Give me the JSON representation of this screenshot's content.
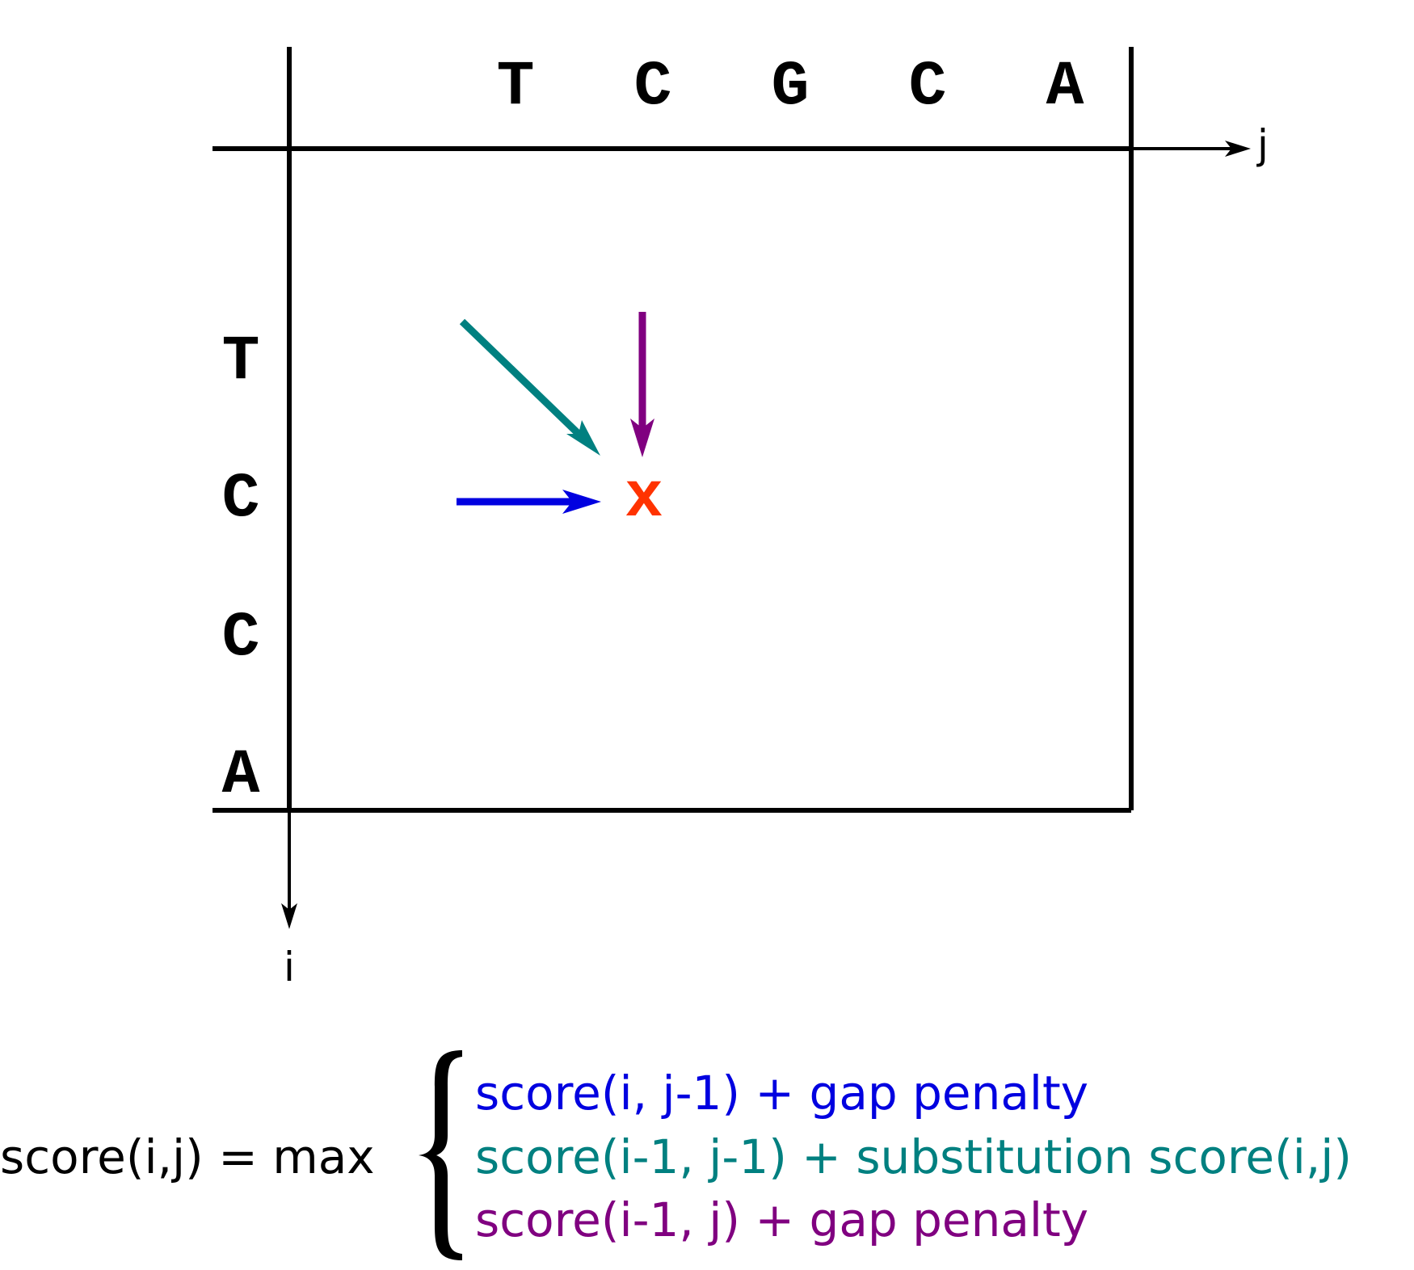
{
  "top_sequence": [
    "T",
    "C",
    "G",
    "C",
    "A"
  ],
  "left_sequence": [
    "T",
    "C",
    "C",
    "A"
  ],
  "axes": {
    "horizontal_label": "j",
    "vertical_label": "i"
  },
  "target_cell": {
    "symbol": "x",
    "color": "#ff3300"
  },
  "arrows": {
    "left_color": "#0000e0",
    "diagonal_color": "#008080",
    "up_color": "#800080"
  },
  "formula": {
    "lhs": "score(i,j) = max",
    "cases": [
      {
        "text": "score(i, j-1) + gap penalty",
        "color": "#0000e0"
      },
      {
        "text": "score(i-1, j-1) + substitution score(i,j)",
        "color": "#008080"
      },
      {
        "text": "score(i-1, j) + gap penalty",
        "color": "#800080"
      }
    ]
  }
}
